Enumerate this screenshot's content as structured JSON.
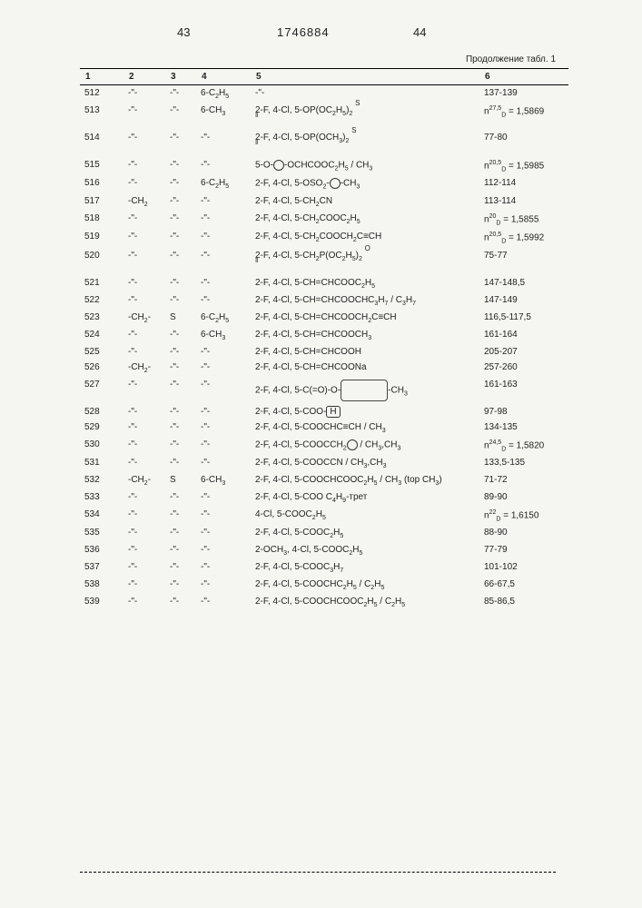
{
  "header": {
    "page_left": "43",
    "patent_number": "1746884",
    "page_right": "44",
    "continuation": "Продолжение табл. 1"
  },
  "columns": [
    "1",
    "2",
    "3",
    "4",
    "5",
    "6"
  ],
  "rows": [
    {
      "n": "512",
      "c2": "-\"-",
      "c3": "-\"-",
      "c4": "6-C₂H₅",
      "c5": "-\"-",
      "c6": "137-139"
    },
    {
      "n": "513",
      "c2": "-\"-",
      "c3": "-\"-",
      "c4": "6-CH₃",
      "c5": "2-F, 4-Cl, 5-OP(OC₂H₅)₂ (S‖)",
      "c6": "n_D^27,5 = 1,5869"
    },
    {
      "n": "514",
      "c2": "-\"-",
      "c3": "-\"-",
      "c4": "-\"-",
      "c5": "2-F, 4-Cl, 5-OP(OCH₃)₂ (S‖)",
      "c6": "77-80"
    },
    {
      "n": "515",
      "c2": "-\"-",
      "c3": "-\"-",
      "c4": "-\"-",
      "c5": "5-O-⟨⬡⟩-OCHCOOC₂H₅ / CH₃",
      "c6": "n_D^20,5 = 1,5985"
    },
    {
      "n": "516",
      "c2": "-\"-",
      "c3": "-\"-",
      "c4": "6-C₂H₅",
      "c5": "2-F, 4-Cl, 5-OSO₂-⟨⬡⟩-CH₃",
      "c6": "112-114"
    },
    {
      "n": "517",
      "c2": "-CH₂",
      "c3": "-\"-",
      "c4": "-\"-",
      "c5": "2-F, 4-Cl, 5-CH₂CN",
      "c6": "113-114"
    },
    {
      "n": "518",
      "c2": "-\"-",
      "c3": "-\"-",
      "c4": "-\"-",
      "c5": "2-F, 4-Cl, 5-CH₂COOC₂H₅",
      "c6": "n_D^20 = 1,5855"
    },
    {
      "n": "519",
      "c2": "-\"-",
      "c3": "-\"-",
      "c4": "-\"-",
      "c5": "2-F, 4-Cl, 5-CH₂COOCH₂C≡CH",
      "c6": "n_D^20,5 = 1,5992"
    },
    {
      "n": "520",
      "c2": "-\"-",
      "c3": "-\"-",
      "c4": "-\"-",
      "c5": "2-F, 4-Cl, 5-CH₂P(OC₂H₅)₂ (O‖)",
      "c6": "75-77"
    },
    {
      "n": "521",
      "c2": "-\"-",
      "c3": "-\"-",
      "c4": "-\"-",
      "c5": "2-F, 4-Cl, 5-CH=CHCOOC₂H₅",
      "c6": "147-148,5"
    },
    {
      "n": "522",
      "c2": "-\"-",
      "c3": "-\"-",
      "c4": "-\"-",
      "c5": "2-F, 4-Cl, 5-CH=CHCOOCHC₃H₇ / C₃H₇",
      "c6": "147-149"
    },
    {
      "n": "523",
      "c2": "-CH₂-",
      "c3": "S",
      "c4": "6-C₂H₅",
      "c5": "2-F, 4-Cl, 5-CH=CHCOOCH₂C≡CH",
      "c6": "116,5-117,5"
    },
    {
      "n": "524",
      "c2": "-\"-",
      "c3": "-\"-",
      "c4": "6-CH₃",
      "c5": "2-F, 4-Cl, 5-CH=CHCOOCH₃",
      "c6": "161-164"
    },
    {
      "n": "525",
      "c2": "-\"-",
      "c3": "-\"-",
      "c4": "-\"-",
      "c5": "2-F, 4-Cl, 5-CH=CHCOOH",
      "c6": "205-207"
    },
    {
      "n": "526",
      "c2": "-CH₂-",
      "c3": "-\"-",
      "c4": "-\"-",
      "c5": "2-F, 4-Cl, 5-CH=CHCOONa",
      "c6": "257-260"
    },
    {
      "n": "527",
      "c2": "-\"-",
      "c3": "-\"-",
      "c4": "-\"-",
      "c5": "2-F, 4-Cl, 5-C(=O)-O-⟨structure⟩-CH₃",
      "c6": "161-163"
    },
    {
      "n": "528",
      "c2": "-\"-",
      "c3": "-\"-",
      "c4": "-\"-",
      "c5": "2-F, 4-Cl, 5-COO-⟨H⟩",
      "c6": "97-98"
    },
    {
      "n": "529",
      "c2": "-\"-",
      "c3": "-\"-",
      "c4": "-\"-",
      "c5": "2-F, 4-Cl, 5-COOCHC≡CH / CH₃",
      "c6": "134-135"
    },
    {
      "n": "530",
      "c2": "-\"-",
      "c3": "-\"-",
      "c4": "-\"-",
      "c5": "2-F, 4-Cl, 5-COOCCH₂⟨⬡⟩ / CH₃,CH₃",
      "c6": "n_D^24,5 = 1,5820"
    },
    {
      "n": "531",
      "c2": "-\"-",
      "c3": "-\"-",
      "c4": "-\"-",
      "c5": "2-F, 4-Cl, 5-COOCCN / CH₃,CH₃",
      "c6": "133,5-135"
    },
    {
      "n": "532",
      "c2": "-CH₂-",
      "c3": "S",
      "c4": "6-CH₃",
      "c5": "2-F, 4-Cl, 5-COOCHCOOC₂H₅ / CH₃ (top CH₃)",
      "c6": "71-72"
    },
    {
      "n": "533",
      "c2": "-\"-",
      "c3": "-\"-",
      "c4": "-\"-",
      "c5": "2-F, 4-Cl, 5-COO C₄H₉-трет",
      "c6": "89-90"
    },
    {
      "n": "534",
      "c2": "-\"-",
      "c3": "-\"-",
      "c4": "-\"-",
      "c5": "4-Cl, 5-COOC₂H₅",
      "c6": "n_D^22 = 1,6150"
    },
    {
      "n": "535",
      "c2": "-\"-",
      "c3": "-\"-",
      "c4": "-\"-",
      "c5": "2-F, 4-Cl, 5-COOC₂H₅",
      "c6": "88-90"
    },
    {
      "n": "536",
      "c2": "-\"-",
      "c3": "-\"-",
      "c4": "-\"-",
      "c5": "2-OCH₃, 4-Cl, 5-COOC₂H₅",
      "c6": "77-79"
    },
    {
      "n": "537",
      "c2": "-\"-",
      "c3": "-\"-",
      "c4": "-\"-",
      "c5": "2-F, 4-Cl, 5-COOC₃H₇",
      "c6": "101-102"
    },
    {
      "n": "538",
      "c2": "-\"-",
      "c3": "-\"-",
      "c4": "-\"-",
      "c5": "2-F, 4-Cl, 5-COOCHC₂H₅ / C₂H₅",
      "c6": "66-67,5"
    },
    {
      "n": "539",
      "c2": "-\"-",
      "c3": "-\"-",
      "c4": "-\"-",
      "c5": "2-F, 4-Cl, 5-COOCHCOOC₂H₅ / C₂H₅",
      "c6": "85-86,5"
    }
  ]
}
